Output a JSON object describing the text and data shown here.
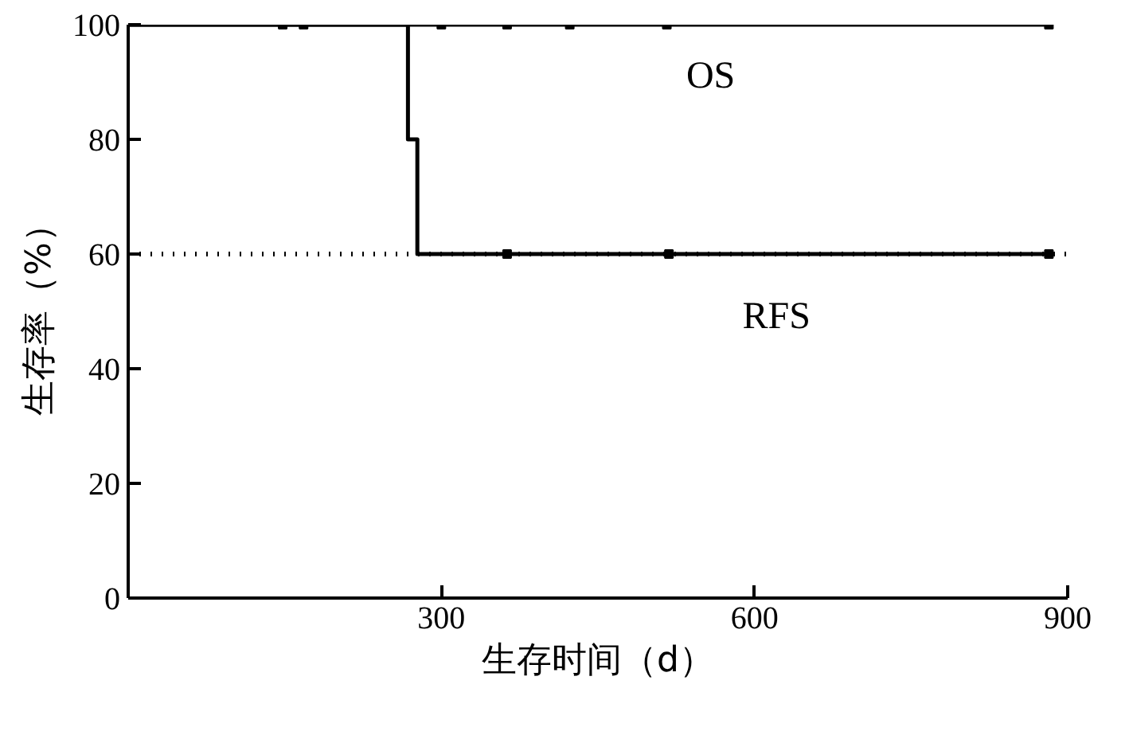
{
  "chart_data": {
    "type": "step",
    "xlabel": "生存时间（d）",
    "ylabel": "生存率（%）",
    "xlim": [
      0,
      900
    ],
    "ylim": [
      0,
      100
    ],
    "xticks": [
      300,
      600,
      900
    ],
    "yticks": [
      0,
      20,
      40,
      60,
      80,
      100
    ],
    "grid": false,
    "line_style": "solid",
    "series": [
      {
        "name": "OS",
        "color": "#000000",
        "x": [
          0,
          882
        ],
        "values": [
          100,
          100
        ]
      },
      {
        "name": "RFS",
        "color": "#000000",
        "x": [
          0,
          268,
          277,
          882
        ],
        "values": [
          100,
          80,
          60,
          60
        ]
      },
      {
        "type": "scatter",
        "marker": "square",
        "color": "#000000",
        "x": [
          148,
          168,
          300,
          363,
          423,
          516,
          882
        ],
        "values": [
          100,
          100,
          100,
          100,
          100,
          100,
          100
        ]
      },
      {
        "type": "scatter",
        "marker": "square",
        "color": "#000000",
        "x": [
          363,
          518,
          882
        ],
        "values": [
          60,
          60,
          60
        ]
      }
    ],
    "ref_lines": [
      {
        "axis": "y",
        "value": 60,
        "line_style": "dotted",
        "color": "#000000"
      }
    ]
  }
}
